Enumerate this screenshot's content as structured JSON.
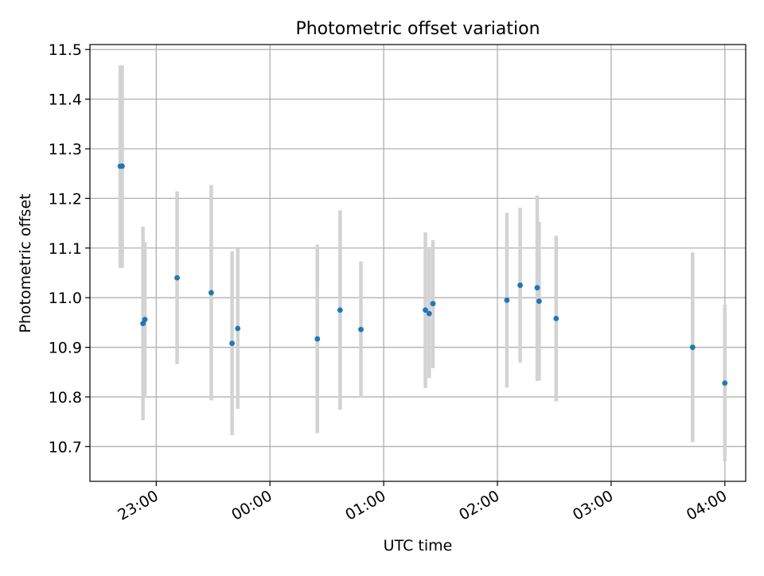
{
  "chart_data": {
    "type": "scatter",
    "title": "Photometric offset variation",
    "xlabel": "UTC time",
    "ylabel": "Photometric offset",
    "grid": true,
    "x_tick_labels": [
      "23:00",
      "00:00",
      "01:00",
      "02:00",
      "03:00",
      "04:00"
    ],
    "y_tick_labels": [
      "10.7",
      "10.8",
      "10.9",
      "11.0",
      "11.1",
      "11.2",
      "11.3",
      "11.4",
      "11.5"
    ],
    "xlim": [
      "22:25",
      "04:11"
    ],
    "ylim": [
      10.63,
      11.51
    ],
    "colors": {
      "point": "#1f77b4",
      "errorbar": "#d3d3d3",
      "grid": "#b0b0b0"
    },
    "points": [
      {
        "time": "22:41",
        "y": 11.265,
        "ymin": 11.06,
        "ymax": 11.468
      },
      {
        "time": "22:42",
        "y": 11.265,
        "ymin": 11.06,
        "ymax": 11.468
      },
      {
        "time": "22:53",
        "y": 10.948,
        "ymin": 10.753,
        "ymax": 11.143
      },
      {
        "time": "22:54",
        "y": 10.956,
        "ymin": 10.8,
        "ymax": 11.112
      },
      {
        "time": "23:11",
        "y": 11.04,
        "ymin": 10.866,
        "ymax": 11.214
      },
      {
        "time": "23:29",
        "y": 11.01,
        "ymin": 10.793,
        "ymax": 11.227
      },
      {
        "time": "23:40",
        "y": 10.908,
        "ymin": 10.723,
        "ymax": 11.093
      },
      {
        "time": "23:43",
        "y": 10.938,
        "ymin": 10.776,
        "ymax": 11.1
      },
      {
        "time": "00:25",
        "y": 10.917,
        "ymin": 10.727,
        "ymax": 11.107
      },
      {
        "time": "00:37",
        "y": 10.975,
        "ymin": 10.774,
        "ymax": 11.176
      },
      {
        "time": "00:48",
        "y": 10.936,
        "ymin": 10.799,
        "ymax": 11.073
      },
      {
        "time": "01:22",
        "y": 10.975,
        "ymin": 10.818,
        "ymax": 11.132
      },
      {
        "time": "01:24",
        "y": 10.968,
        "ymin": 10.838,
        "ymax": 11.098
      },
      {
        "time": "01:26",
        "y": 10.988,
        "ymin": 10.858,
        "ymax": 11.116
      },
      {
        "time": "02:05",
        "y": 10.995,
        "ymin": 10.819,
        "ymax": 11.171
      },
      {
        "time": "02:12",
        "y": 11.025,
        "ymin": 10.869,
        "ymax": 11.181
      },
      {
        "time": "02:21",
        "y": 11.02,
        "ymin": 10.832,
        "ymax": 11.206
      },
      {
        "time": "02:22",
        "y": 10.993,
        "ymin": 10.833,
        "ymax": 11.153
      },
      {
        "time": "02:31",
        "y": 10.958,
        "ymin": 10.791,
        "ymax": 11.125
      },
      {
        "time": "03:43",
        "y": 10.9,
        "ymin": 10.709,
        "ymax": 11.091
      },
      {
        "time": "04:00",
        "y": 10.828,
        "ymin": 10.67,
        "ymax": 10.986
      }
    ]
  }
}
